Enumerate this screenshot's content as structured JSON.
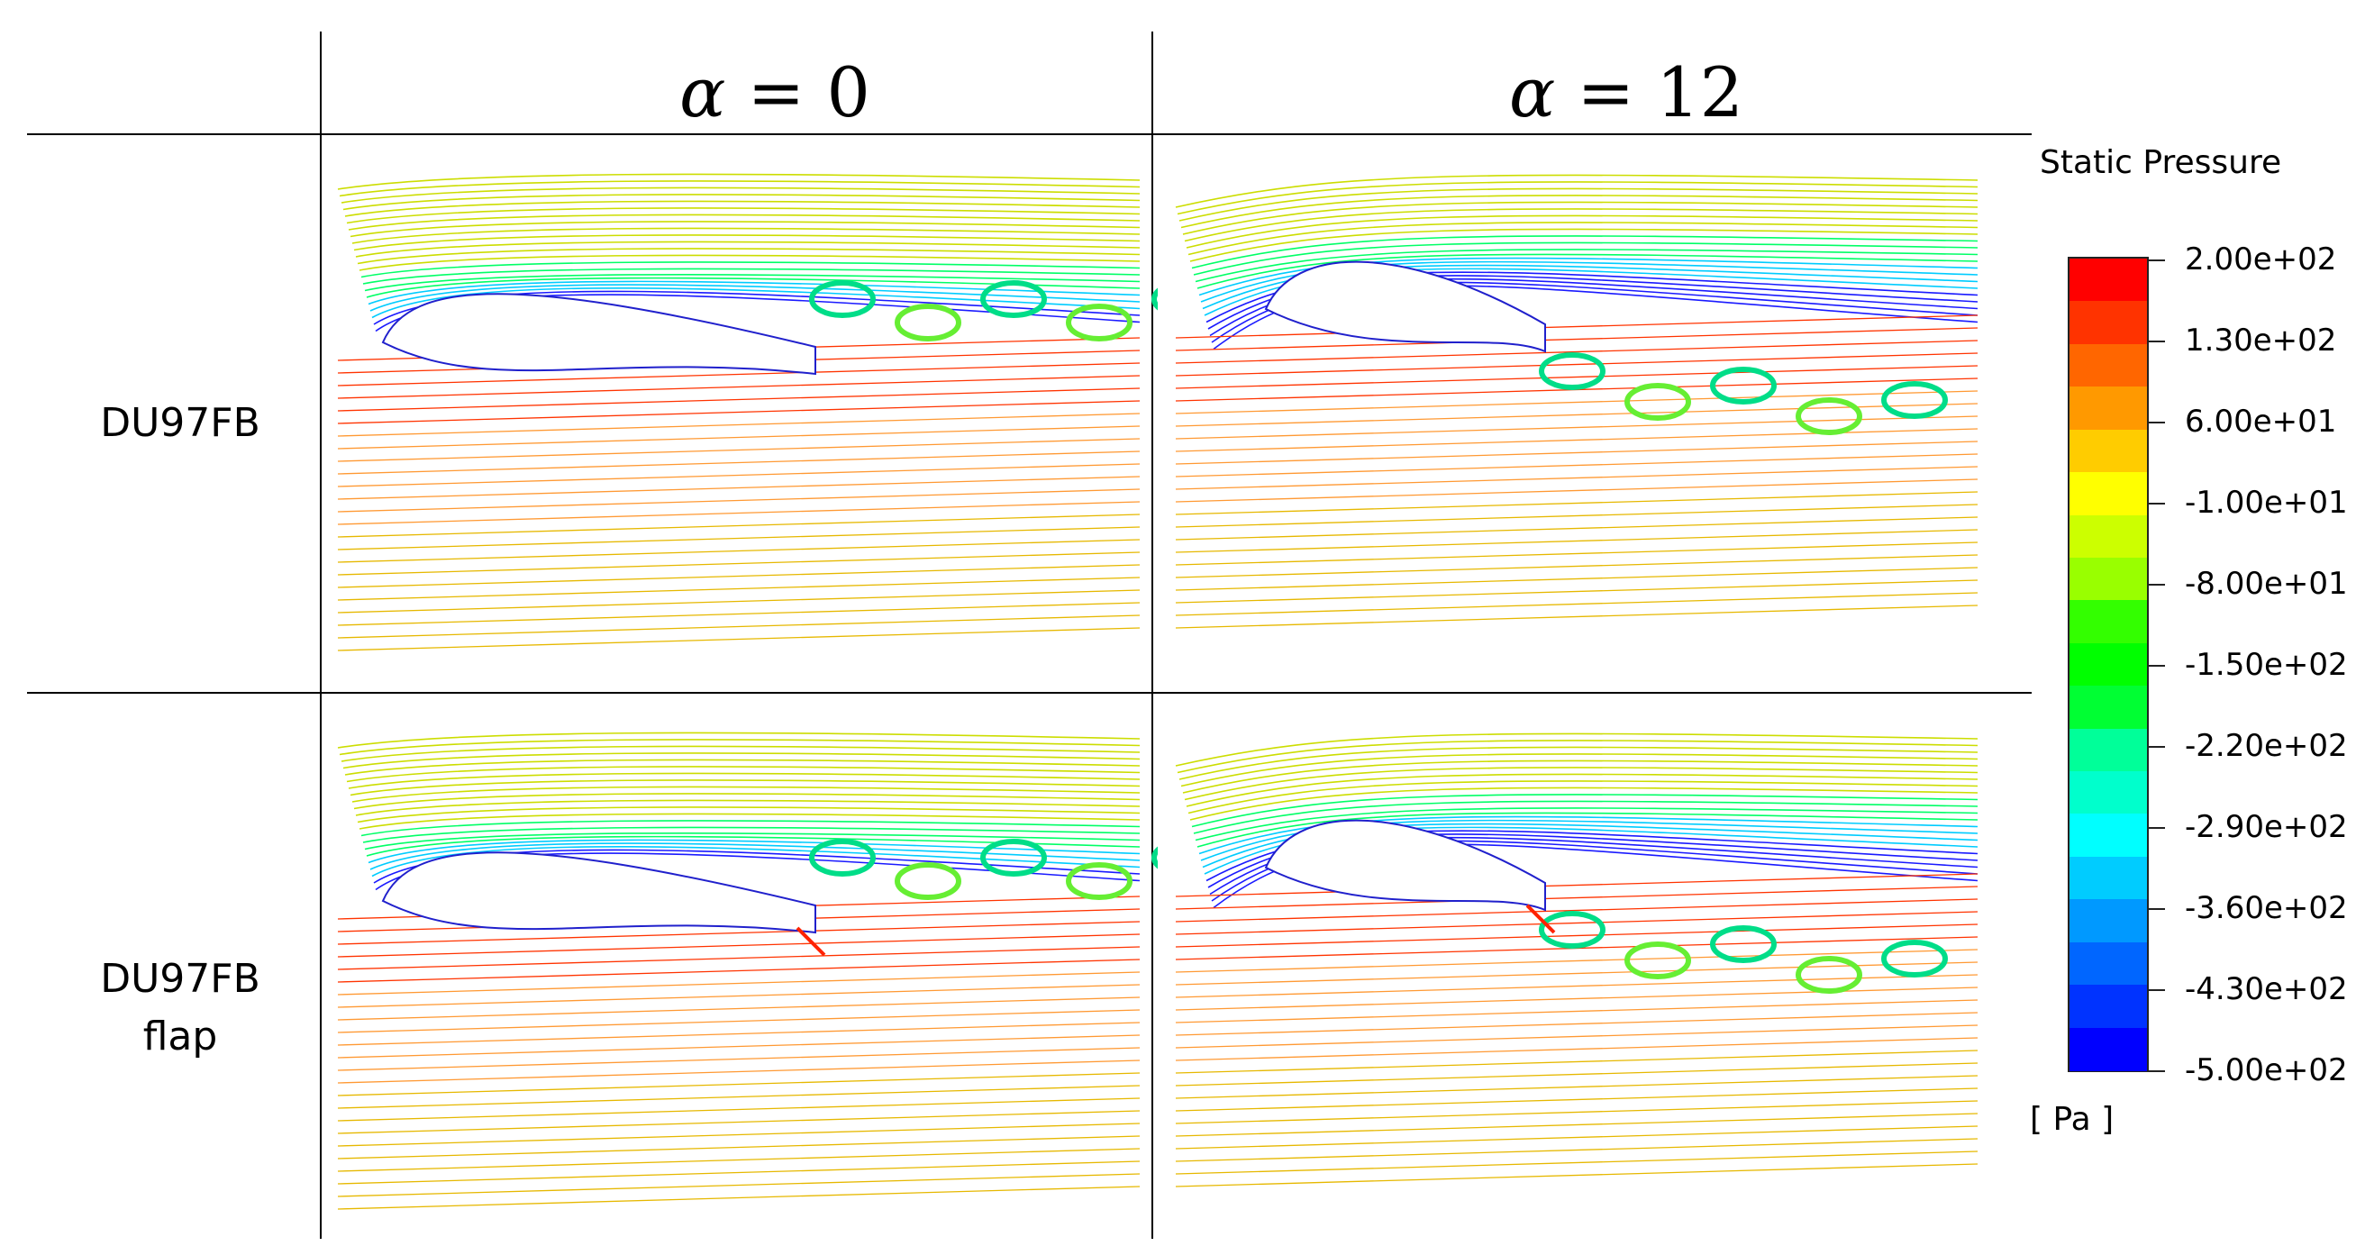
{
  "column_headers": [
    {
      "symbol": "α",
      "equals": " = ",
      "value": "0"
    },
    {
      "symbol": "α",
      "equals": " = ",
      "value": "12"
    }
  ],
  "row_labels": [
    {
      "line1": "DU97FB",
      "line2": ""
    },
    {
      "line1": "DU97FB",
      "line2": "flap"
    }
  ],
  "legend": {
    "title": "Static Pressure",
    "unit": "[ Pa ]",
    "tick_labels": [
      "2.00e+02",
      "1.30e+02",
      "6.00e+01",
      "-1.00e+01",
      "-8.00e+01",
      "-1.50e+02",
      "-2.20e+02",
      "-2.90e+02",
      "-3.60e+02",
      "-4.30e+02",
      "-5.00e+02"
    ],
    "colors": [
      "#ff0000",
      "#ff3300",
      "#ff6600",
      "#ff9900",
      "#ffcc00",
      "#ffff00",
      "#ccff00",
      "#99ff00",
      "#33ff00",
      "#00ff00",
      "#00ff33",
      "#00ff99",
      "#00ffcc",
      "#00ffff",
      "#00ccff",
      "#0099ff",
      "#0066ff",
      "#0033ff",
      "#0000ff"
    ]
  },
  "panels": [
    {
      "name": "du97fb-alpha-0"
    },
    {
      "name": "du97fb-alpha-12"
    },
    {
      "name": "du97fb-flap-alpha-0"
    },
    {
      "name": "du97fb-flap-alpha-12"
    }
  ]
}
